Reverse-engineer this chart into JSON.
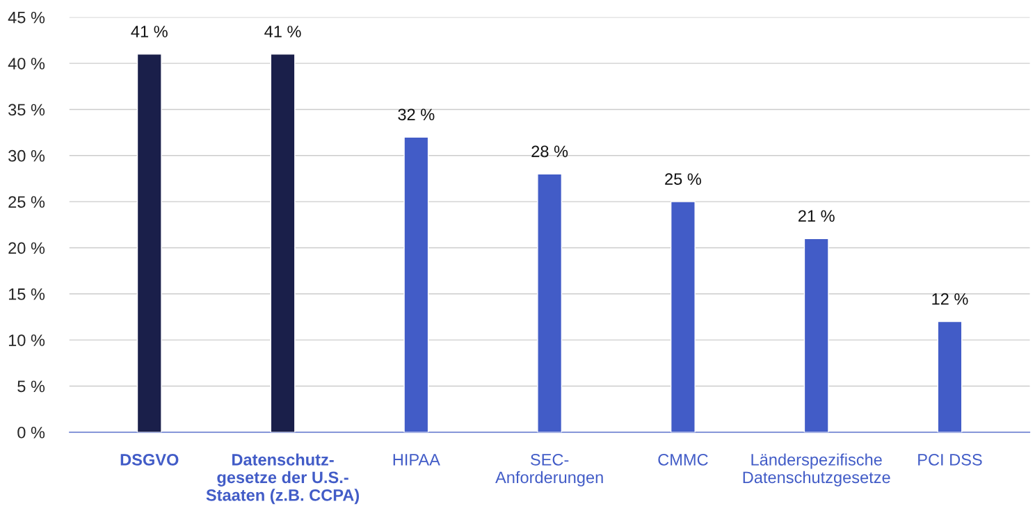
{
  "chart_data": {
    "type": "bar",
    "categories": [
      "DSGVO",
      "Datenschutz-\ngesetze der U.S.-\nStaaten (z.B. CCPA)",
      "HIPAA",
      "SEC-\nAnforderungen",
      "CMMC",
      "Länderspezifische\nDatenschutzgesetze",
      "PCI DSS"
    ],
    "values": [
      41,
      41,
      32,
      28,
      25,
      21,
      12
    ],
    "colors": [
      "#1a1f4a",
      "#1a1f4a",
      "#425cc7",
      "#425cc7",
      "#425cc7",
      "#425cc7",
      "#425cc7"
    ],
    "value_labels": [
      "41 %",
      "41 %",
      "32 %",
      "28 %",
      "25 %",
      "21 %",
      "12 %"
    ],
    "ylim": [
      0,
      45
    ],
    "yticks": [
      {
        "value": 0,
        "label": "0 %"
      },
      {
        "value": 5,
        "label": "5 %"
      },
      {
        "value": 10,
        "label": "10 %"
      },
      {
        "value": 15,
        "label": "15 %"
      },
      {
        "value": 20,
        "label": "20 %"
      },
      {
        "value": 25,
        "label": "25 %"
      },
      {
        "value": 30,
        "label": "30 %"
      },
      {
        "value": 35,
        "label": "35 %"
      },
      {
        "value": 40,
        "label": "40 %"
      },
      {
        "value": 45,
        "label": "45 %"
      }
    ],
    "grid": "y",
    "legend": false
  }
}
